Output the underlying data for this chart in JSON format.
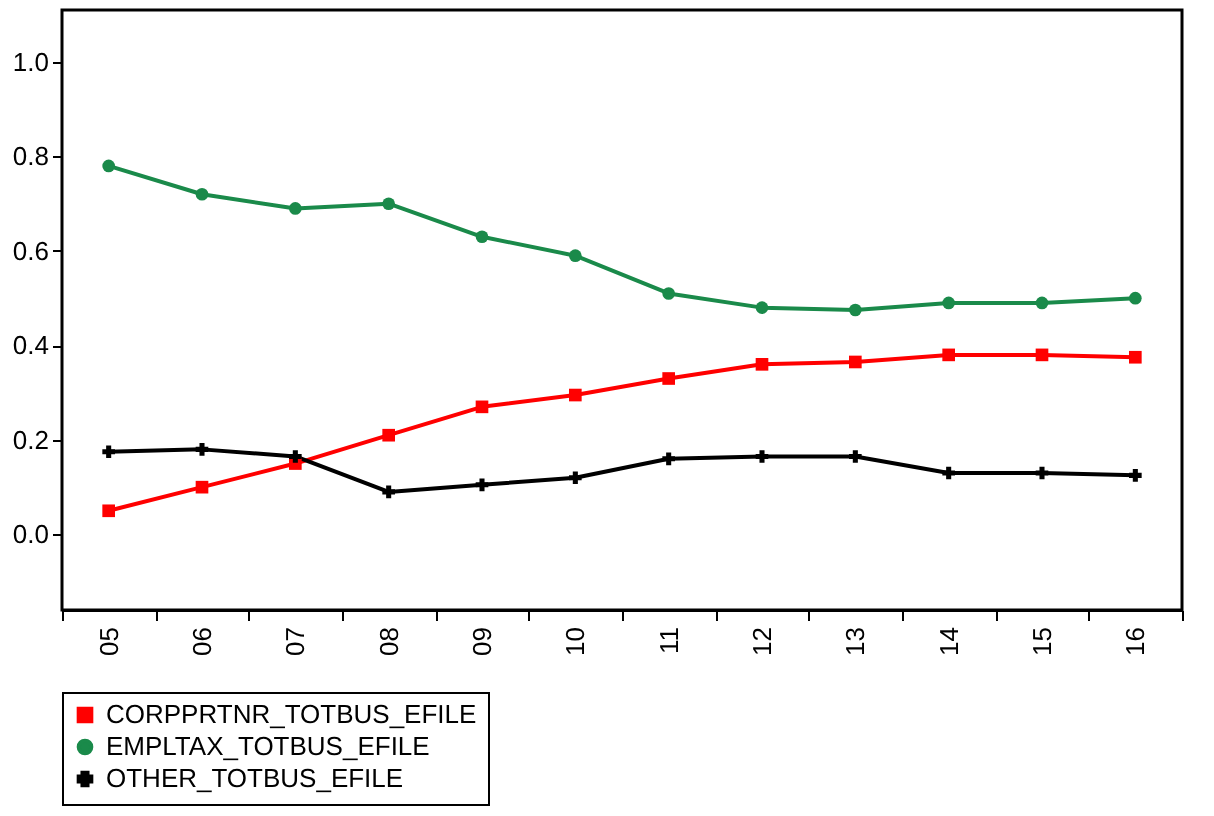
{
  "chart_data": {
    "type": "line",
    "categories": [
      "05",
      "06",
      "07",
      "08",
      "09",
      "10",
      "11",
      "12",
      "13",
      "14",
      "15",
      "16"
    ],
    "series": [
      {
        "name": "CORPPRTNR_TOTBUS_EFILE",
        "color": "#ff0000",
        "marker": "square",
        "values": [
          0.05,
          0.1,
          0.15,
          0.21,
          0.27,
          0.295,
          0.33,
          0.36,
          0.365,
          0.38,
          0.38,
          0.375
        ]
      },
      {
        "name": "EMPLTAX_TOTBUS_EFILE",
        "color": "#1a8a4a",
        "marker": "circle",
        "values": [
          0.78,
          0.72,
          0.69,
          0.7,
          0.63,
          0.59,
          0.51,
          0.48,
          0.475,
          0.49,
          0.49,
          0.5
        ]
      },
      {
        "name": "OTHER_TOTBUS_EFILE",
        "color": "#000000",
        "marker": "cross",
        "values": [
          0.175,
          0.18,
          0.165,
          0.09,
          0.105,
          0.12,
          0.16,
          0.165,
          0.165,
          0.13,
          0.13,
          0.125
        ]
      }
    ],
    "ylim": [
      -0.16,
      1.11
    ],
    "yticks": [
      {
        "value": 0,
        "label": "0.0"
      },
      {
        "value": 0.2,
        "label": "0.2"
      },
      {
        "value": 0.4,
        "label": "0.4"
      },
      {
        "value": 0.6,
        "label": "0.6"
      },
      {
        "value": 0.8,
        "label": "0.8"
      },
      {
        "value": 1,
        "label": "1.0"
      }
    ],
    "grid": false,
    "legend": "bottom",
    "line_style": "solid"
  }
}
